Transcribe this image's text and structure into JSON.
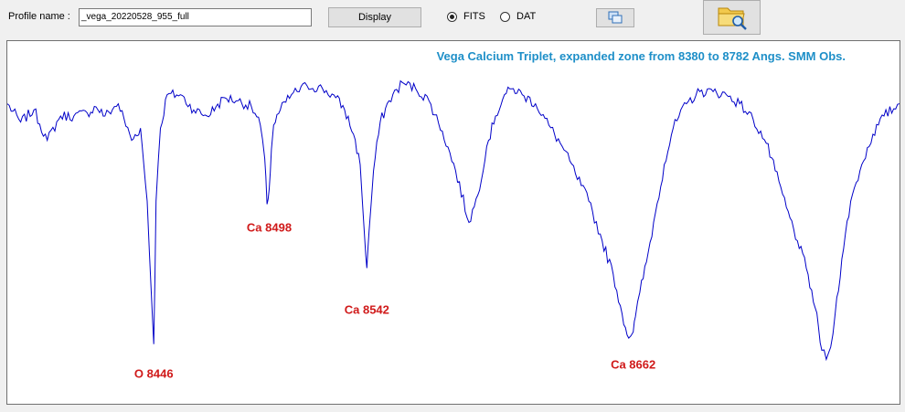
{
  "toolbar": {
    "profile_label": "Profile name :",
    "profile_value": "_vega_20220528_955_full",
    "display_label": "Display",
    "radio_fits_label": "FITS",
    "radio_dat_label": "DAT",
    "selected_format": "FITS",
    "copy_icon": "copy-window-icon",
    "folder_icon": "folder-search-icon"
  },
  "chart_data": {
    "type": "line",
    "title": "Vega Calcium Triplet, expanded zone from 8380 to 8782 Angs.   SMM Obs.",
    "xlabel": "",
    "ylabel": "",
    "xlim": [
      8380,
      8782
    ],
    "ylim": [
      0,
      1
    ],
    "grid": false,
    "series": [
      {
        "color": "#0000c8",
        "x": [
          8380,
          8386,
          8392,
          8398,
          8404,
          8410,
          8416,
          8420,
          8424,
          8430,
          8436,
          8440,
          8443,
          8445,
          8446,
          8447,
          8449,
          8452,
          8458,
          8464,
          8470,
          8474,
          8478,
          8484,
          8490,
          8494,
          8496,
          8497,
          8498,
          8499,
          8500,
          8503,
          8508,
          8515,
          8522,
          8528,
          8532,
          8536,
          8539,
          8541,
          8542,
          8543,
          8545,
          8548,
          8552,
          8558,
          8564,
          8570,
          8576,
          8582,
          8588,
          8592,
          8596,
          8600,
          8604,
          8608,
          8612,
          8618,
          8624,
          8630,
          8636,
          8642,
          8648,
          8653,
          8657,
          8660,
          8662,
          8663,
          8665,
          8668,
          8672,
          8676,
          8680,
          8686,
          8692,
          8698,
          8704,
          8710,
          8716,
          8722,
          8726,
          8731,
          8736,
          8740,
          8744,
          8747,
          8749,
          8751,
          8753,
          8756,
          8760,
          8765,
          8770,
          8775,
          8782
        ],
        "y": [
          0.92,
          0.86,
          0.9,
          0.8,
          0.88,
          0.88,
          0.89,
          0.91,
          0.88,
          0.92,
          0.8,
          0.84,
          0.6,
          0.28,
          0.13,
          0.6,
          0.84,
          0.95,
          0.95,
          0.9,
          0.88,
          0.91,
          0.94,
          0.93,
          0.91,
          0.85,
          0.74,
          0.59,
          0.64,
          0.77,
          0.85,
          0.9,
          0.95,
          0.98,
          0.97,
          0.94,
          0.9,
          0.82,
          0.72,
          0.48,
          0.38,
          0.5,
          0.7,
          0.86,
          0.93,
          0.99,
          0.97,
          0.93,
          0.83,
          0.7,
          0.53,
          0.62,
          0.78,
          0.88,
          0.95,
          0.97,
          0.95,
          0.92,
          0.85,
          0.78,
          0.69,
          0.6,
          0.47,
          0.36,
          0.23,
          0.15,
          0.17,
          0.22,
          0.3,
          0.4,
          0.56,
          0.72,
          0.84,
          0.92,
          0.96,
          0.96,
          0.95,
          0.92,
          0.87,
          0.79,
          0.7,
          0.58,
          0.47,
          0.38,
          0.25,
          0.11,
          0.08,
          0.12,
          0.23,
          0.41,
          0.6,
          0.72,
          0.82,
          0.88,
          0.92
        ]
      }
    ],
    "annotations": [
      {
        "text": "O 8446",
        "x": 8446,
        "y": 0.02,
        "color": "#d01a1a"
      },
      {
        "text": "Ca 8498",
        "x": 8498,
        "y": 0.5,
        "color": "#d01a1a"
      },
      {
        "text": "Ca 8542",
        "x": 8542,
        "y": 0.23,
        "color": "#d01a1a"
      },
      {
        "text": "Ca 8662",
        "x": 8662,
        "y": 0.05,
        "color": "#d01a1a"
      }
    ],
    "title_color": "#1e8fc8"
  }
}
